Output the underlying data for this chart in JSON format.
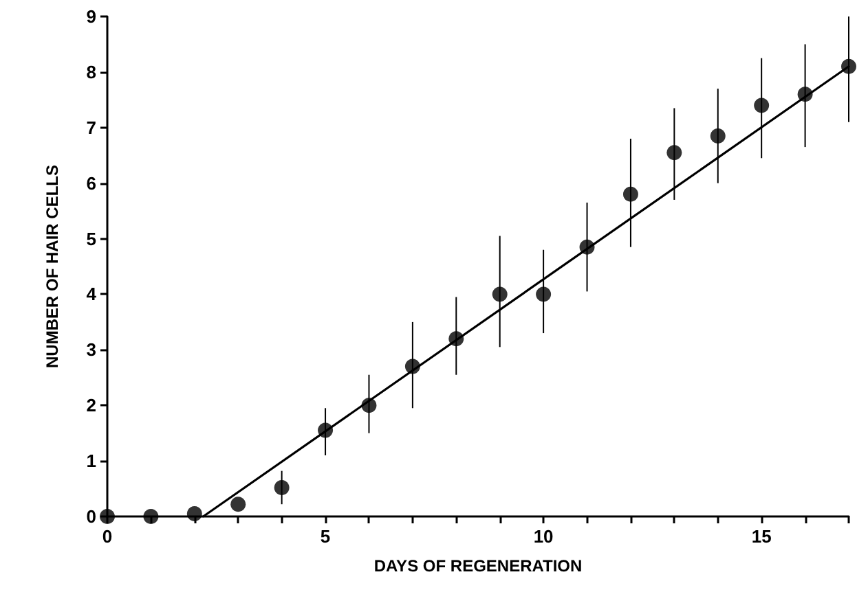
{
  "chart_data": {
    "type": "scatter",
    "xlabel": "DAYS OF REGENERATION",
    "ylabel": "NUMBER OF HAIR CELLS",
    "xlim": [
      0,
      17
    ],
    "ylim": [
      0,
      9
    ],
    "xticks": [
      0,
      {
        "value": 1,
        "label": null
      },
      {
        "value": 2,
        "label": null
      },
      {
        "value": 3,
        "label": null
      },
      {
        "value": 4,
        "label": null
      },
      5,
      {
        "value": 6,
        "label": null
      },
      {
        "value": 7,
        "label": null
      },
      {
        "value": 8,
        "label": null
      },
      {
        "value": 9,
        "label": null
      },
      10,
      {
        "value": 11,
        "label": null
      },
      {
        "value": 12,
        "label": null
      },
      {
        "value": 13,
        "label": null
      },
      {
        "value": 14,
        "label": null
      },
      15,
      {
        "value": 16,
        "label": null
      },
      {
        "value": 17,
        "label": null
      }
    ],
    "yticks": [
      0,
      1,
      2,
      3,
      4,
      5,
      6,
      7,
      8,
      9
    ],
    "grid": false,
    "marker": "circle",
    "series": [
      {
        "color": "#000000",
        "x": [
          0,
          1,
          2,
          3,
          4,
          5,
          6,
          7,
          8,
          9,
          10,
          11,
          12,
          13,
          14,
          15,
          16,
          17
        ],
        "values": [
          0,
          0,
          0.05,
          0.22,
          0.52,
          1.55,
          2.0,
          2.7,
          3.2,
          4.0,
          4.0,
          4.85,
          5.8,
          6.55,
          6.85,
          7.4,
          7.6,
          8.1
        ],
        "errors": [
          null,
          null,
          null,
          null,
          [
            0.22,
            0.82
          ],
          [
            1.1,
            1.95
          ],
          [
            1.5,
            2.55
          ],
          [
            1.95,
            3.5
          ],
          [
            2.55,
            3.95
          ],
          [
            3.05,
            5.05
          ],
          [
            3.3,
            4.8
          ],
          [
            4.05,
            5.65
          ],
          [
            4.85,
            6.8
          ],
          [
            5.7,
            7.35
          ],
          [
            6.0,
            7.7
          ],
          [
            6.45,
            8.25
          ],
          [
            6.65,
            8.5
          ],
          [
            7.1,
            9.0
          ]
        ]
      },
      {
        "type": "line",
        "color": "#000000",
        "marker": "none",
        "line_style": "solid",
        "x": [
          2.2,
          17
        ],
        "values": [
          0,
          8.1
        ]
      }
    ]
  }
}
